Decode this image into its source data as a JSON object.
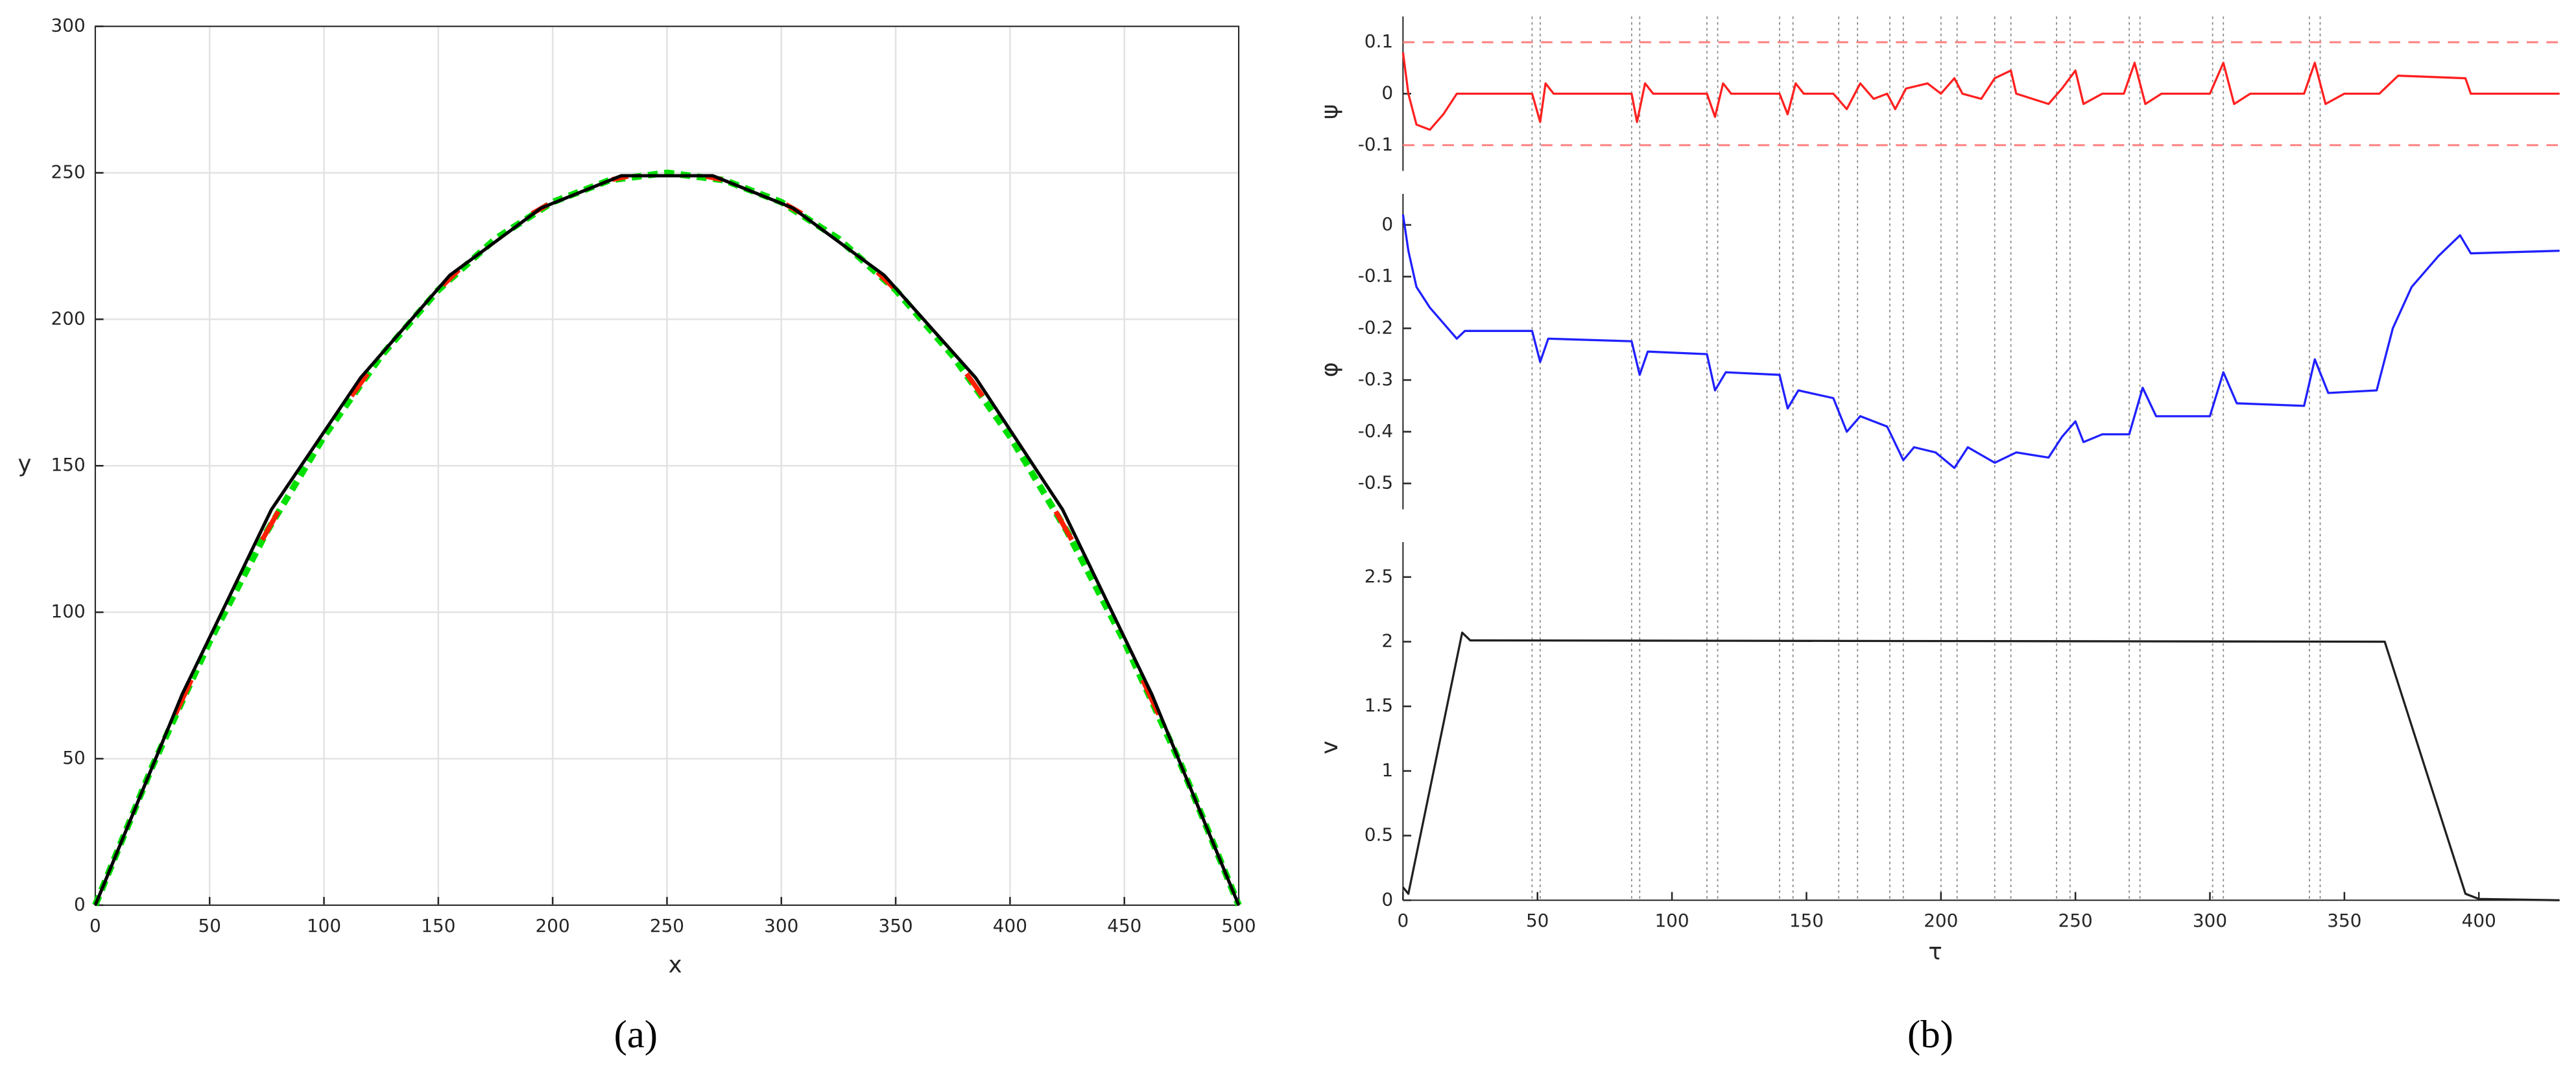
{
  "chart_data": [
    {
      "type": "line",
      "label": "(a)",
      "xlabel": "x",
      "ylabel": "y",
      "xlim": [
        0,
        500
      ],
      "ylim": [
        0,
        300
      ],
      "xticks": [
        0,
        50,
        100,
        150,
        200,
        250,
        300,
        350,
        400,
        450,
        500
      ],
      "yticks": [
        0,
        50,
        100,
        150,
        200,
        250,
        300
      ],
      "grid": true,
      "series": [
        {
          "color": "#00e000",
          "dash": true,
          "width": 4,
          "x": [
            0,
            25,
            50,
            75,
            100,
            125,
            150,
            175,
            200,
            225,
            250,
            275,
            300,
            325,
            350,
            375,
            400,
            425,
            450,
            475,
            500
          ],
          "values": [
            0,
            47.5,
            90,
            127.5,
            160,
            187.5,
            210,
            227.5,
            240,
            247.5,
            250,
            247.5,
            240,
            227.5,
            210,
            187.5,
            160,
            127.5,
            90,
            47.5,
            0
          ]
        },
        {
          "color": "#ff2000",
          "width": 3,
          "x": [
            35,
            42,
            57,
            73,
            80,
            96,
            112,
            119,
            135,
            152,
            159,
            175,
            191,
            198,
            212,
            226,
            233,
            250,
            267,
            274,
            288,
            302,
            309,
            325,
            342,
            349,
            365,
            381,
            388,
            404,
            420,
            427,
            442,
            458,
            465
          ],
          "values": [
            65.1,
            76.9,
            null,
            124.7,
            134.4,
            null,
            173.8,
            181.4,
            null,
            211.6,
            216.9,
            null,
            236.1,
            239.2,
            null,
            247.7,
            248.8,
            null,
            248.8,
            247.7,
            null,
            239.2,
            236.1,
            null,
            216.1,
            210.8,
            null,
            181.4,
            173.8,
            null,
            134.4,
            124.7,
            null,
            76.9,
            65.1
          ]
        },
        {
          "color": "#000000",
          "width": 2,
          "x": [
            0,
            38,
            77,
            116,
            155,
            195,
            230,
            270,
            305,
            345,
            385,
            423,
            462,
            500
          ],
          "values": [
            0,
            72,
            135,
            180,
            215,
            238,
            249,
            249,
            238,
            215,
            180,
            135,
            72,
            0
          ]
        }
      ]
    },
    {
      "type": "line",
      "label": "(b)",
      "xlabel": "τ",
      "xlim": [
        0,
        430
      ],
      "xticks": [
        0,
        50,
        100,
        150,
        200,
        250,
        300,
        350,
        400
      ],
      "vlines": [
        48,
        51,
        85,
        88,
        113,
        117,
        140,
        145,
        162,
        169,
        181,
        186,
        200,
        206,
        220,
        226,
        243,
        248,
        270,
        274,
        301,
        305,
        337,
        341
      ],
      "panels": [
        {
          "ylabel": "ψ",
          "ylim": [
            -0.15,
            0.15
          ],
          "yticks": [
            -0.1,
            0,
            0.1
          ],
          "hlines": [
            0.1,
            -0.1
          ],
          "series": [
            {
              "color": "#ff2020",
              "x": [
                0,
                2,
                5,
                10,
                15,
                20,
                30,
                48,
                51,
                53,
                56,
                85,
                87,
                90,
                93,
                113,
                116,
                119,
                122,
                140,
                143,
                146,
                149,
                160,
                165,
                170,
                175,
                180,
                183,
                187,
                195,
                200,
                205,
                208,
                215,
                220,
                226,
                228,
                240,
                245,
                250,
                253,
                260,
                268,
                272,
                276,
                282,
                300,
                305,
                309,
                315,
                335,
                339,
                343,
                350,
                363,
                370,
                395,
                397,
                430
              ],
              "values": [
                0.08,
                0,
                -0.06,
                -0.07,
                -0.04,
                0,
                0,
                0,
                -0.055,
                0.02,
                0,
                0,
                -0.055,
                0.02,
                0,
                0,
                -0.045,
                0.02,
                0,
                0,
                -0.04,
                0.02,
                0,
                0,
                -0.03,
                0.02,
                -0.01,
                0,
                -0.03,
                0.01,
                0.02,
                0,
                0.03,
                0,
                -0.01,
                0.03,
                0.045,
                0,
                -0.02,
                0.01,
                0.045,
                -0.02,
                0,
                0,
                0.06,
                -0.02,
                0,
                0,
                0.06,
                -0.02,
                0,
                0,
                0.06,
                -0.02,
                0,
                0,
                0.035,
                0.03,
                0,
                0
              ]
            }
          ]
        },
        {
          "ylabel": "φ",
          "ylim": [
            -0.55,
            0.06
          ],
          "yticks": [
            -0.5,
            -0.4,
            -0.3,
            -0.2,
            -0.1,
            0
          ],
          "series": [
            {
              "color": "#2020ff",
              "x": [
                0,
                2,
                5,
                10,
                15,
                20,
                23,
                48,
                51,
                54,
                85,
                88,
                91,
                113,
                116,
                120,
                140,
                143,
                147,
                160,
                165,
                170,
                180,
                186,
                190,
                198,
                205,
                210,
                220,
                228,
                240,
                245,
                250,
                253,
                260,
                270,
                275,
                280,
                300,
                305,
                310,
                335,
                339,
                344,
                362,
                368,
                375,
                385,
                393,
                397,
                430
              ],
              "values": [
                0.02,
                -0.05,
                -0.12,
                -0.16,
                -0.19,
                -0.22,
                -0.205,
                -0.205,
                -0.265,
                -0.22,
                -0.225,
                -0.29,
                -0.245,
                -0.25,
                -0.32,
                -0.285,
                -0.29,
                -0.355,
                -0.32,
                -0.335,
                -0.4,
                -0.37,
                -0.39,
                -0.455,
                -0.43,
                -0.44,
                -0.47,
                -0.43,
                -0.46,
                -0.44,
                -0.45,
                -0.41,
                -0.38,
                -0.42,
                -0.405,
                -0.405,
                -0.315,
                -0.37,
                -0.37,
                -0.285,
                -0.345,
                -0.35,
                -0.26,
                -0.325,
                -0.32,
                -0.2,
                -0.12,
                -0.06,
                -0.02,
                -0.055,
                -0.05
              ]
            }
          ]
        },
        {
          "ylabel": "v",
          "ylim": [
            0,
            2.77
          ],
          "yticks": [
            0,
            0.5,
            1,
            1.5,
            2,
            2.5
          ],
          "series": [
            {
              "color": "#202020",
              "x": [
                0,
                2,
                22,
                25,
                365,
                395,
                400,
                430
              ],
              "values": [
                0.1,
                0.05,
                2.07,
                2.01,
                2,
                0.05,
                0.01,
                0
              ]
            }
          ]
        }
      ]
    }
  ]
}
